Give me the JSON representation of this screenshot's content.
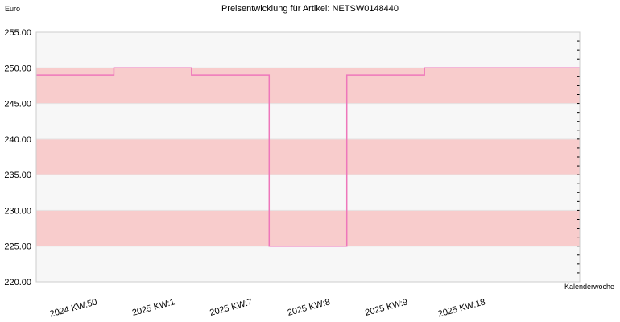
{
  "chart_data": {
    "type": "line",
    "step": true,
    "title": "Preisentwicklung für Artikel: NETSW0148440",
    "ylabel": "Euro",
    "xlabel": "Kalenderwoche",
    "ylim": [
      220,
      255
    ],
    "yticks": [
      "220.00",
      "225.00",
      "230.00",
      "235.00",
      "240.00",
      "245.00",
      "250.00",
      "255.00"
    ],
    "categories": [
      "2024 KW:50",
      "2025 KW:1",
      "2025 KW:7",
      "2025 KW:8",
      "2025 KW:9",
      "2025 KW:18",
      ""
    ],
    "series": [
      {
        "values": [
          249,
          250,
          249,
          225,
          249,
          250,
          250
        ]
      }
    ],
    "grid": true,
    "band_colors": [
      "#f7f7f7",
      "#f8cccc"
    ],
    "line_color": "#ee77bb"
  }
}
